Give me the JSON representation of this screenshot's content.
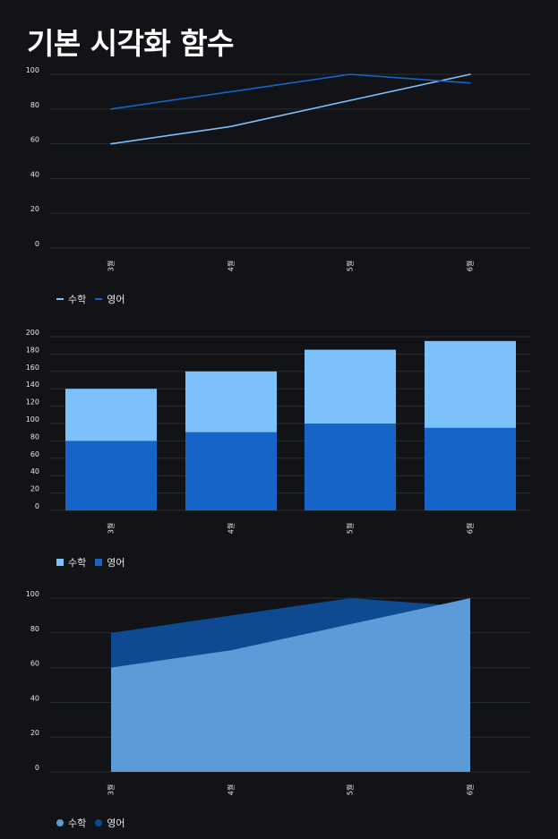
{
  "page": {
    "title": "기본 시각화 함수"
  },
  "colors": {
    "math": "#7cc1fb",
    "english": "#1565c8",
    "grid": "#2a2d33",
    "text": "#e8e8e8"
  },
  "chart_data": [
    {
      "type": "line",
      "categories": [
        "3월",
        "4월",
        "5월",
        "6월"
      ],
      "series": [
        {
          "name": "수학",
          "values": [
            60,
            70,
            85,
            100
          ]
        },
        {
          "name": "영어",
          "values": [
            80,
            90,
            100,
            95
          ]
        }
      ],
      "yticks": [
        0,
        20,
        40,
        60,
        80,
        100
      ],
      "ylim": [
        0,
        100
      ],
      "grid": true,
      "legend": "bottom-left"
    },
    {
      "type": "bar",
      "stacked": true,
      "categories": [
        "3월",
        "4월",
        "5월",
        "6월"
      ],
      "series": [
        {
          "name": "수학",
          "values": [
            60,
            70,
            85,
            100
          ]
        },
        {
          "name": "영어",
          "values": [
            80,
            90,
            100,
            95
          ]
        }
      ],
      "yticks": [
        0,
        20,
        40,
        60,
        80,
        100,
        120,
        140,
        160,
        180,
        200
      ],
      "ylim": [
        0,
        200
      ],
      "grid": true,
      "legend": "bottom-left"
    },
    {
      "type": "area",
      "categories": [
        "3월",
        "4월",
        "5월",
        "6월"
      ],
      "series": [
        {
          "name": "수학",
          "values": [
            60,
            70,
            85,
            100
          ]
        },
        {
          "name": "영어",
          "values": [
            80,
            90,
            100,
            95
          ]
        }
      ],
      "yticks": [
        0,
        20,
        40,
        60,
        80,
        100
      ],
      "ylim": [
        0,
        100
      ],
      "grid": true,
      "legend": "bottom-left"
    }
  ]
}
